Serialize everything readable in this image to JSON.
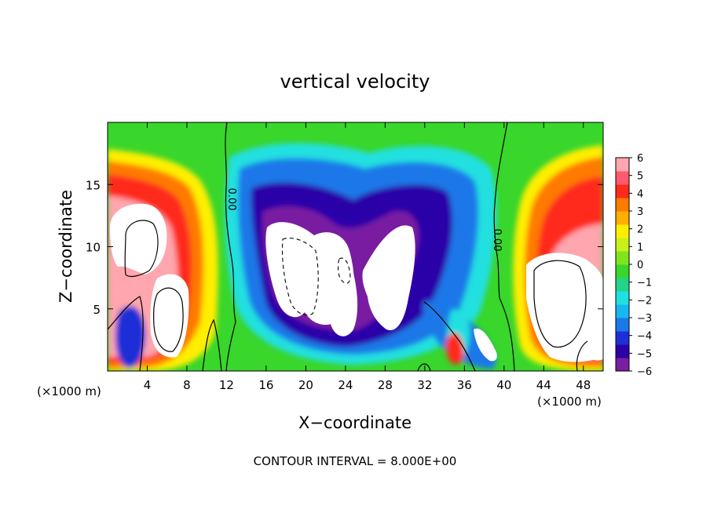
{
  "chart_data": {
    "type": "heatmap",
    "title": "vertical velocity",
    "xlabel": "X−coordinate",
    "ylabel": "Z−coordinate",
    "x_unit_left": "(×1000 m)",
    "x_unit_right": "(×1000 m)",
    "xlim": [
      0,
      50
    ],
    "ylim": [
      0,
      20
    ],
    "x_ticks": [
      4,
      8,
      12,
      16,
      20,
      24,
      28,
      32,
      36,
      40,
      44,
      48
    ],
    "x_tick_labels": [
      "4",
      "8",
      "12",
      "16",
      "20",
      "24",
      "28",
      "32",
      "36",
      "40",
      "44",
      "48"
    ],
    "y_ticks": [
      5,
      10,
      15
    ],
    "y_tick_labels": [
      "5",
      "10",
      "15"
    ],
    "colorbar": {
      "min": -6,
      "max": 6,
      "tick_values": [
        6,
        5,
        4,
        3,
        2,
        1,
        0,
        -1,
        -2,
        -3,
        -4,
        -5,
        -6
      ],
      "tick_labels": [
        "6",
        "5",
        "4",
        "3",
        "2",
        "1",
        "0",
        "−1",
        "−2",
        "−3",
        "−4",
        "−5",
        "−6"
      ],
      "colors": [
        "#7a1fa2",
        "#2a00a8",
        "#1f2fd8",
        "#1a78e8",
        "#17b7f0",
        "#20e0e0",
        "#22d488",
        "#39d62b",
        "#7ee61a",
        "#c8f01a",
        "#ffee00",
        "#ffb000",
        "#ff7a00",
        "#ff2a1a",
        "#ff5a6e",
        "#ffa6ae"
      ]
    },
    "contour_labels": [
      "0.00",
      "0.00"
    ],
    "features": [
      {
        "x": 3.0,
        "z": 5.5,
        "w": 7.5,
        "kind": "updraft"
      },
      {
        "x": 5.5,
        "z": 7.0,
        "w": 8.0,
        "kind": "updraft"
      },
      {
        "x": 3.0,
        "z": 1.5,
        "w": -3.5,
        "kind": "downdraft"
      },
      {
        "x": 20.0,
        "z": 8.5,
        "w": -8.0,
        "kind": "downdraft"
      },
      {
        "x": 24.5,
        "z": 6.5,
        "w": -7.5,
        "kind": "downdraft"
      },
      {
        "x": 27.5,
        "z": 7.5,
        "w": -7.5,
        "kind": "downdraft"
      },
      {
        "x": 35.0,
        "z": 1.5,
        "w": 4.5,
        "kind": "updraft"
      },
      {
        "x": 38.0,
        "z": 2.5,
        "w": -6.5,
        "kind": "downdraft"
      },
      {
        "x": 45.5,
        "z": 6.5,
        "w": 8.0,
        "kind": "updraft"
      },
      {
        "x": 48.5,
        "z": 2.0,
        "w": 7.0,
        "kind": "updraft"
      }
    ]
  },
  "footer": {
    "contour_interval": "CONTOUR INTERVAL = 8.000E+00"
  }
}
